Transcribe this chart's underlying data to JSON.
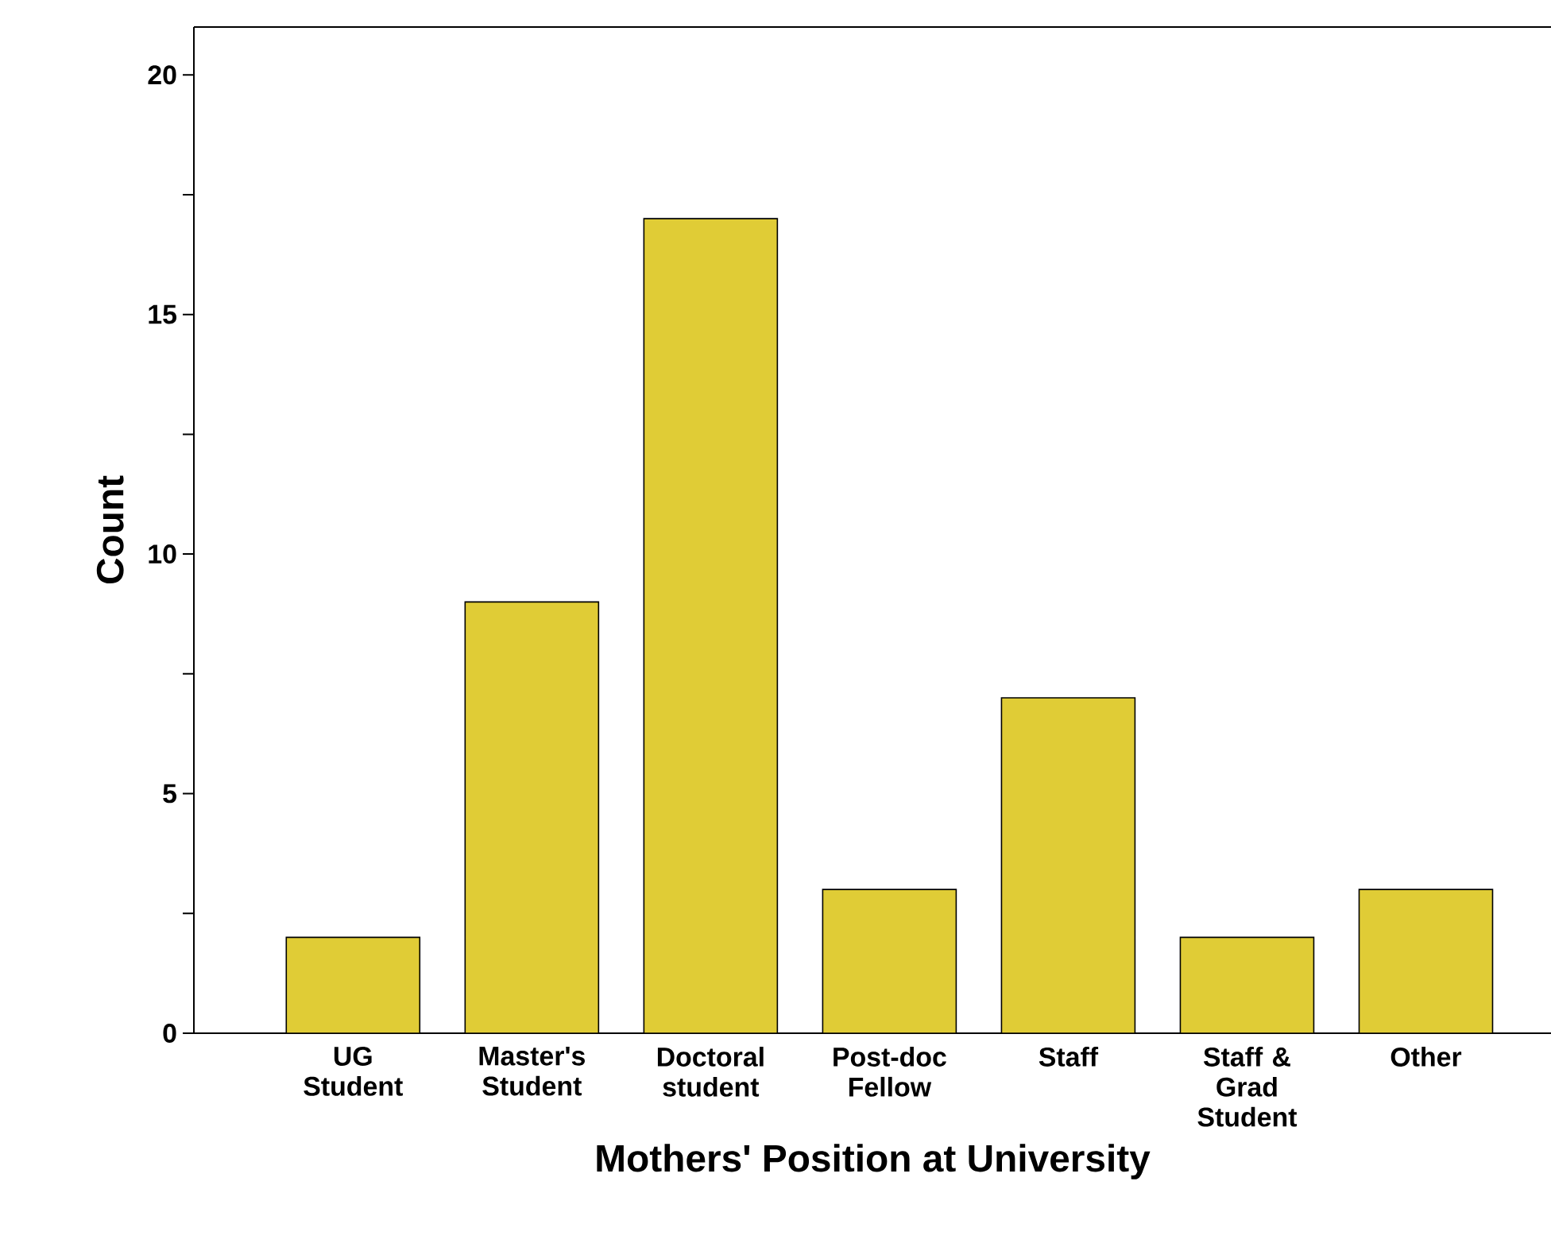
{
  "chart_data": {
    "type": "bar",
    "xlabel": "Mothers' Position at University",
    "ylabel": "Count",
    "categories": [
      "UG Student",
      "Master's Student",
      "Doctoral student",
      "Post-doc Fellow",
      "Staff",
      "Staff & Grad Student",
      "Other"
    ],
    "values": [
      2,
      9,
      17,
      3,
      7,
      2,
      3
    ],
    "color": "#e0cc36",
    "ylim": [
      0,
      21
    ],
    "yticks": [
      0,
      {
        "value": 2.5,
        "label": null
      },
      5,
      {
        "value": 7.5,
        "label": null
      },
      10,
      {
        "value": 12.5,
        "label": null
      },
      15,
      {
        "value": 17.5,
        "label": null
      },
      20
    ],
    "grid": false
  }
}
